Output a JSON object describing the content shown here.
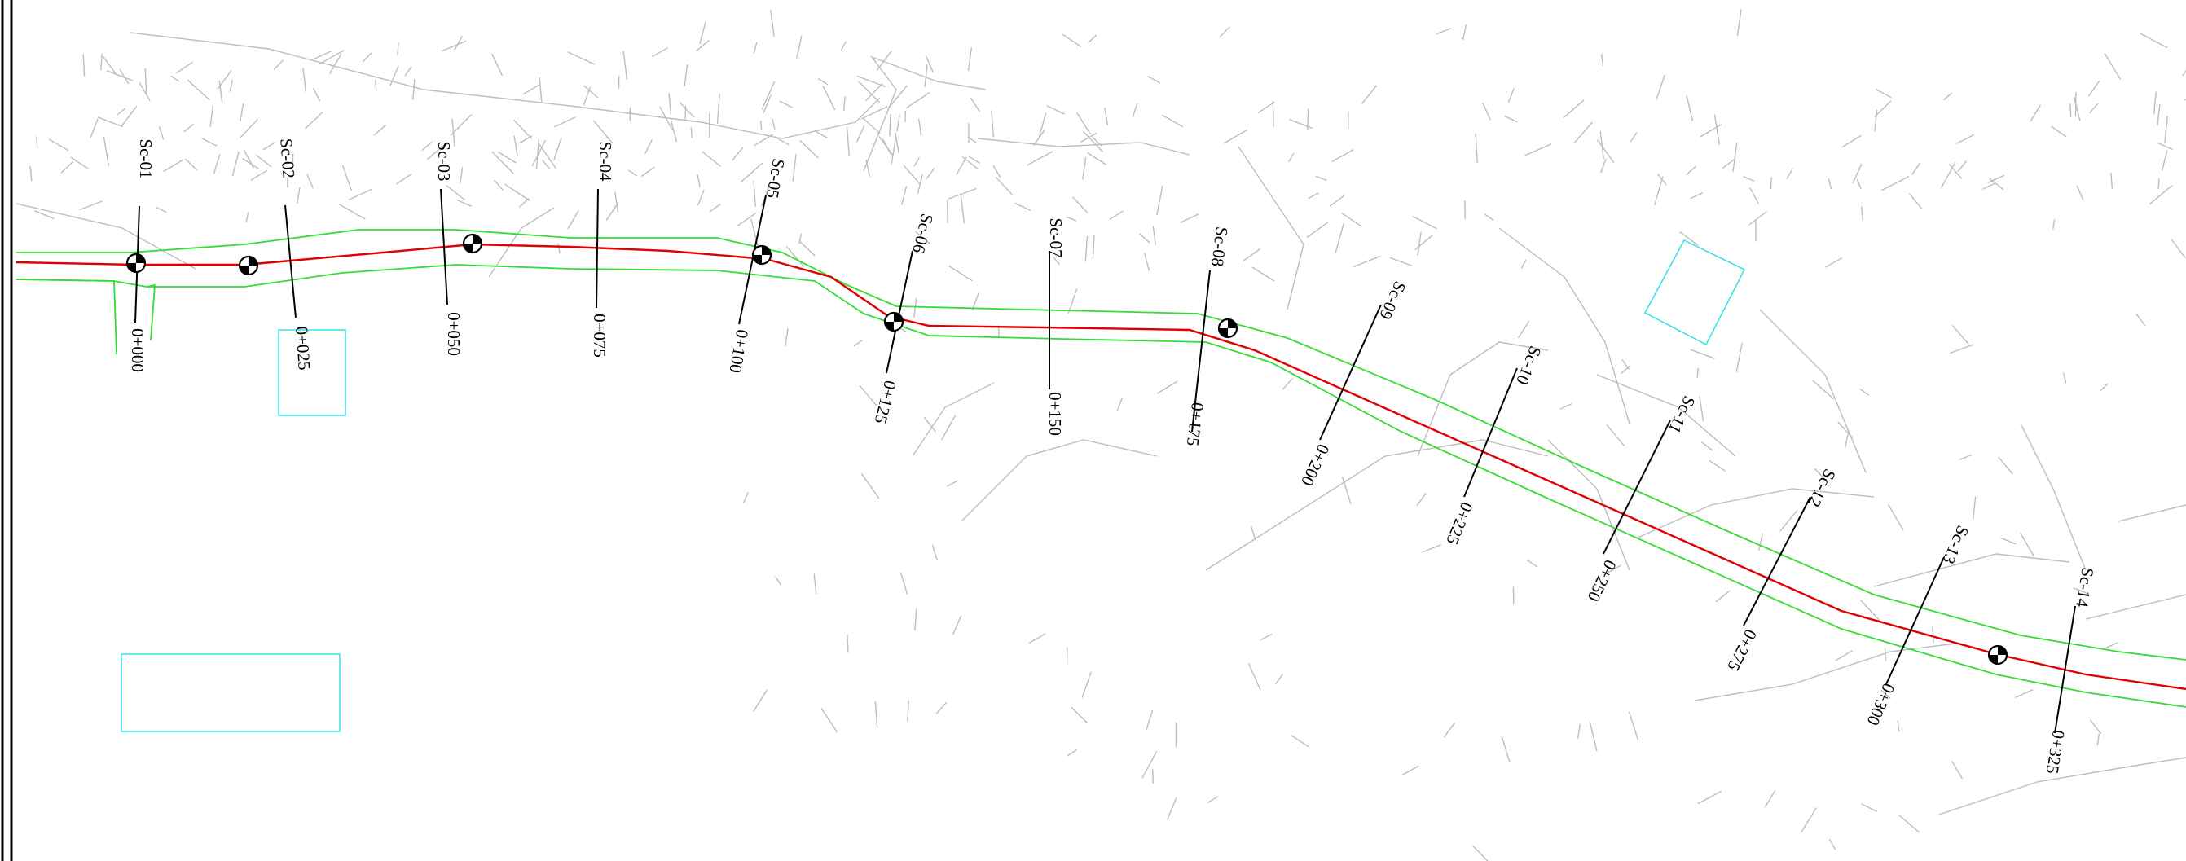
{
  "drawing": {
    "sections": [
      {
        "section": "Sc-01",
        "station": "0+000"
      },
      {
        "section": "Sc-02",
        "station": "0+025"
      },
      {
        "section": "Sc-03",
        "station": "0+050"
      },
      {
        "section": "Sc-04",
        "station": "0+075"
      },
      {
        "section": "Sc-05",
        "station": "0+100"
      },
      {
        "section": "Sc-06",
        "station": "0+125"
      },
      {
        "section": "Sc-07",
        "station": "0+150"
      },
      {
        "section": "Sc-08",
        "station": "0+175"
      },
      {
        "section": "Sc-09",
        "station": "0+200"
      },
      {
        "section": "Sc-10",
        "station": "0+225"
      },
      {
        "section": "Sc-11",
        "station": "0+250"
      },
      {
        "section": "Sc-12",
        "station": "0+275"
      },
      {
        "section": "Sc-13",
        "station": "0+300"
      },
      {
        "section": "Sc-14",
        "station": "0+325"
      }
    ],
    "colors": {
      "centerline": "#e00000",
      "edge": "#33dd33",
      "contour": "#bdbdbd",
      "frame": "#000000",
      "box": "#33e0e8",
      "marker": "#000000"
    },
    "icons": {
      "benchmark": "survey-control-point-icon"
    }
  }
}
